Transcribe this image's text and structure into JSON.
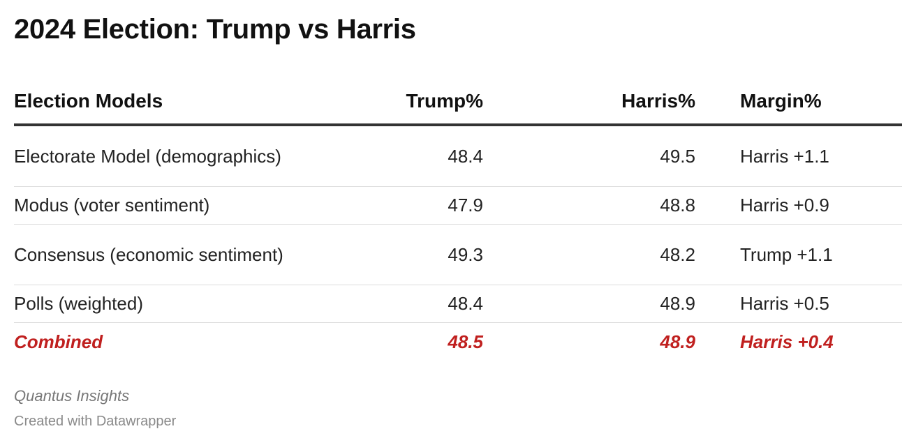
{
  "title": "2024 Election: Trump vs Harris",
  "table": {
    "headers": [
      "Election Models",
      "Trump%",
      "Harris%",
      "Margin%"
    ],
    "rows": [
      [
        "Electorate Model (demographics)",
        "48.4",
        "49.5",
        "Harris +1.1"
      ],
      [
        "Modus (voter sentiment)",
        "47.9",
        "48.8",
        "Harris +0.9"
      ],
      [
        "Consensus (economic sentiment)",
        "49.3",
        "48.2",
        "Trump +1.1"
      ],
      [
        "Polls (weighted)",
        "48.4",
        "48.9",
        "Harris +0.5"
      ],
      [
        "Combined",
        "48.5",
        "48.9",
        "Harris +0.4"
      ]
    ]
  },
  "chart_data": {
    "type": "table",
    "title": "2024 Election: Trump vs Harris",
    "columns": [
      "Election Models",
      "Trump%",
      "Harris%",
      "Margin%"
    ],
    "rows": [
      {
        "model": "Electorate Model (demographics)",
        "trump": 48.4,
        "harris": 49.5,
        "margin": "Harris +1.1"
      },
      {
        "model": "Modus (voter sentiment)",
        "trump": 47.9,
        "harris": 48.8,
        "margin": "Harris +0.9"
      },
      {
        "model": "Consensus (economic sentiment)",
        "trump": 49.3,
        "harris": 48.2,
        "margin": "Trump +1.1"
      },
      {
        "model": "Polls (weighted)",
        "trump": 48.4,
        "harris": 48.9,
        "margin": "Harris +0.5"
      },
      {
        "model": "Combined",
        "trump": 48.5,
        "harris": 48.9,
        "margin": "Harris +0.4"
      }
    ],
    "highlight_color": "#c0201f"
  },
  "footer": {
    "source": "Quantus Insights",
    "credit": "Created with Datawrapper"
  }
}
